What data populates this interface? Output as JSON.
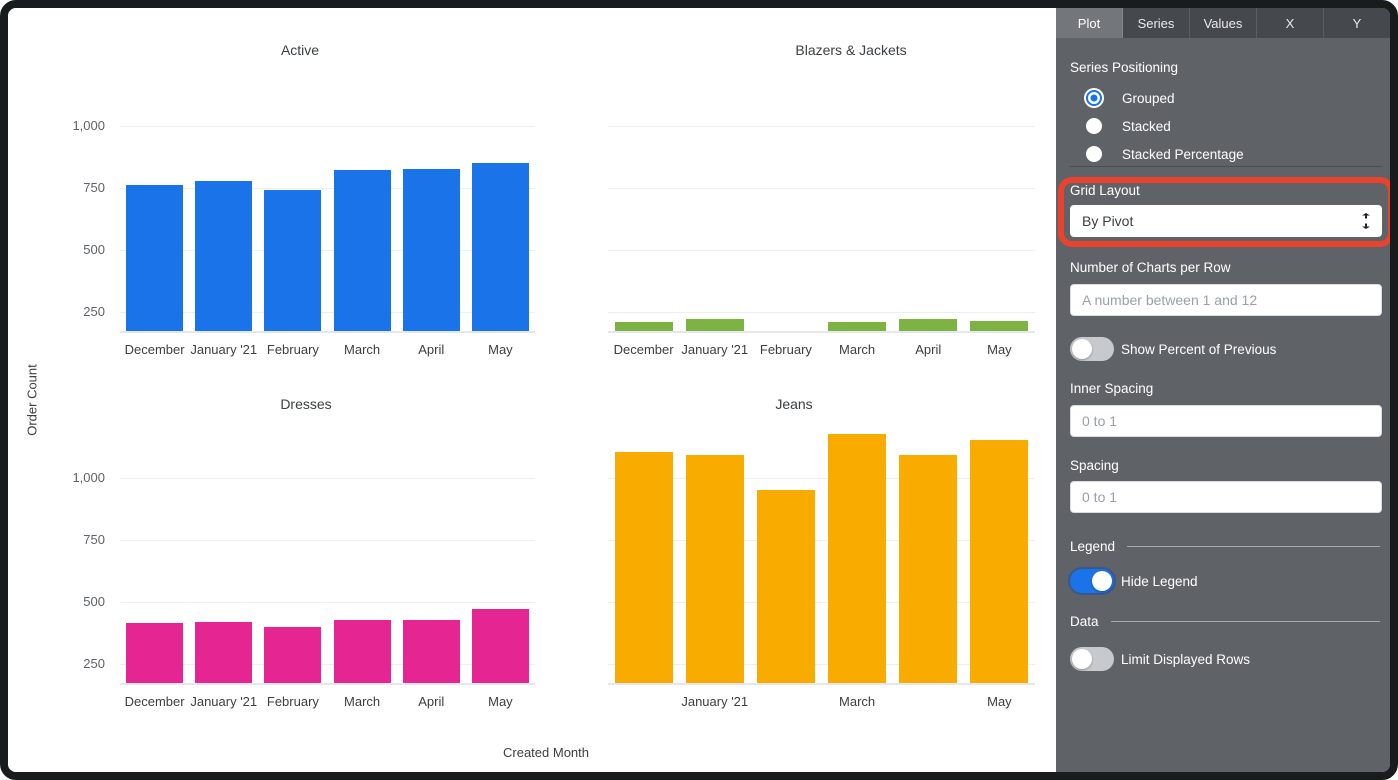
{
  "chart_data": {
    "type": "bar",
    "layout": "small-multiples-grid-2x2",
    "categories": [
      "December",
      "January '21",
      "February",
      "March",
      "April",
      "May"
    ],
    "x_axis_title": "Created Month",
    "y_axis_title": "Order Count",
    "y_ticks": [
      {
        "value": 250,
        "label": "250"
      },
      {
        "value": 500,
        "label": "500"
      },
      {
        "value": 750,
        "label": "750"
      },
      {
        "value": 1000,
        "label": "1,000"
      }
    ],
    "y_axis_min": 172,
    "y_axis_max": 1244,
    "grid": true,
    "legend": "hidden",
    "series": [
      {
        "name": "Active",
        "color": "#1A73E8",
        "values": [
          762,
          778,
          741,
          820,
          824,
          851
        ],
        "show_y_ticks": true,
        "x_tick_indices": [
          0,
          1,
          2,
          3,
          4,
          5
        ]
      },
      {
        "name": "Blazers & Jackets",
        "color": "#7CB342",
        "values": [
          207,
          221,
          null,
          207,
          221,
          212
        ],
        "show_y_ticks": false,
        "x_tick_indices": [
          0,
          1,
          2,
          3,
          4,
          5
        ]
      },
      {
        "name": "Dresses",
        "color": "#E52592",
        "values": [
          412,
          418,
          397,
          428,
          427,
          470
        ],
        "show_y_ticks": true,
        "x_tick_indices": [
          0,
          1,
          2,
          3,
          4,
          5
        ]
      },
      {
        "name": "Jeans",
        "color": "#F9AB00",
        "values": [
          1103,
          1092,
          952,
          1178,
          1090,
          1150
        ],
        "show_y_ticks": false,
        "x_tick_indices": [
          1,
          3,
          5
        ]
      }
    ]
  },
  "panel": {
    "tabs": [
      {
        "label": "Plot",
        "active": true
      },
      {
        "label": "Series",
        "active": false
      },
      {
        "label": "Values",
        "active": false
      },
      {
        "label": "X",
        "active": false
      },
      {
        "label": "Y",
        "active": false
      }
    ],
    "series_positioning": {
      "label": "Series Positioning",
      "options": [
        {
          "label": "Grouped",
          "selected": true
        },
        {
          "label": "Stacked",
          "selected": false
        },
        {
          "label": "Stacked Percentage",
          "selected": false
        }
      ]
    },
    "grid_layout": {
      "label": "Grid Layout",
      "value": "By Pivot"
    },
    "charts_per_row": {
      "label": "Number of Charts per Row",
      "placeholder": "A number between 1 and 12"
    },
    "show_percent_of_previous": {
      "label": "Show Percent of Previous",
      "on": false
    },
    "inner_spacing": {
      "label": "Inner Spacing",
      "placeholder": "0 to 1"
    },
    "spacing": {
      "label": "Spacing",
      "placeholder": "0 to 1"
    },
    "legend_section": {
      "label": "Legend"
    },
    "hide_legend": {
      "label": "Hide Legend",
      "on": true
    },
    "data_section": {
      "label": "Data"
    },
    "limit_displayed_rows": {
      "label": "Limit Displayed Rows",
      "on": false
    }
  },
  "annotation": {
    "type": "highlight-box",
    "target": "Grid Layout control",
    "color": "#E8432D"
  }
}
